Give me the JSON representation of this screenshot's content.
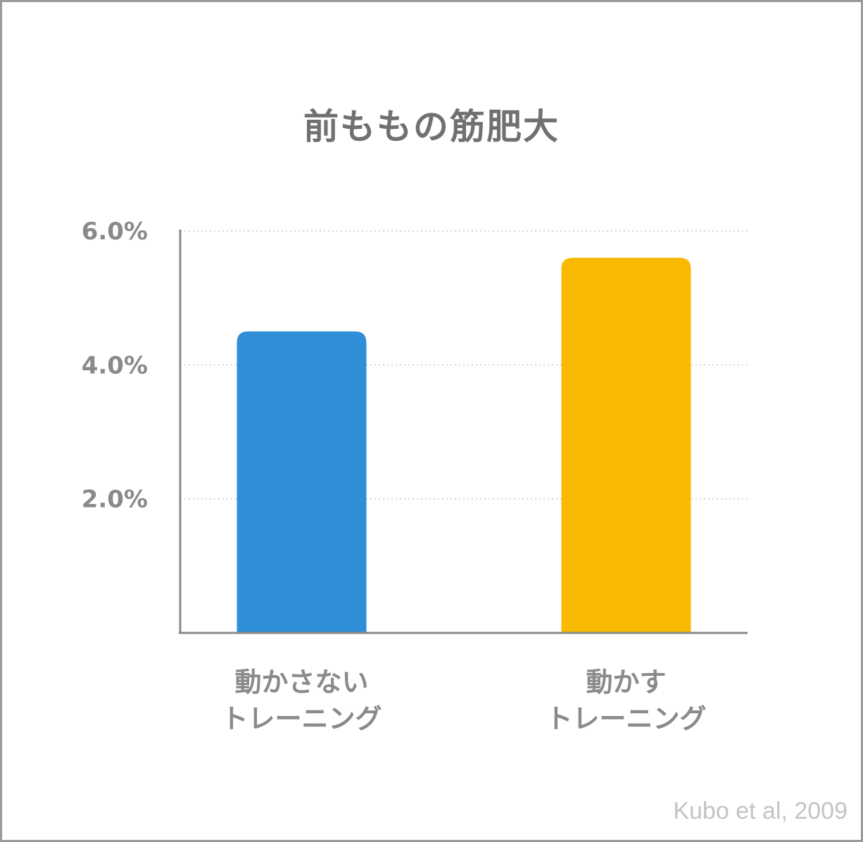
{
  "chart_data": {
    "type": "bar",
    "title": "前ももの筋肥大",
    "categories": [
      [
        "動かさない",
        "トレーニング"
      ],
      [
        "動かす",
        "トレーニング"
      ]
    ],
    "values": [
      4.5,
      5.6
    ],
    "unit": "%",
    "ylim": [
      0,
      6.0
    ],
    "yticks": [
      2.0,
      4.0,
      6.0
    ],
    "ytick_labels": [
      "2.0%",
      "4.0%",
      "6.0%"
    ],
    "grid": "dotted horizontal",
    "colors": [
      "#2E8FD8",
      "#F7BA00"
    ],
    "source": "Kubo et al, 2009"
  }
}
